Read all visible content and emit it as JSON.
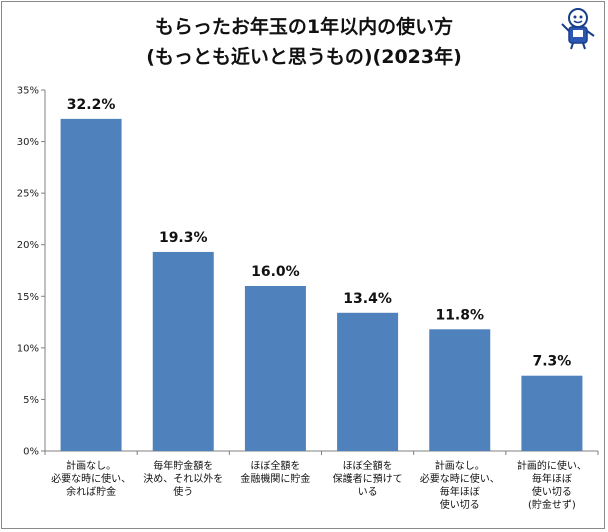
{
  "chart_data": {
    "type": "bar",
    "title_lines": [
      "もらったお年玉の1年以内の使い方",
      "(もっとも近いと思うもの)(2023年)"
    ],
    "categories": [
      [
        "計画なし。",
        "必要な時に使い、",
        "余れば貯金"
      ],
      [
        "毎年貯金額を",
        "決め、それ以外を",
        "使う"
      ],
      [
        "ほぼ全額を",
        "金融機関に貯金"
      ],
      [
        "ほぼ全額を",
        "保護者に預けて",
        "いる"
      ],
      [
        "計画なし。",
        "必要な時に使い、",
        "毎年ほぼ",
        "使い切る"
      ],
      [
        "計画的に使い、",
        "毎年ほぼ",
        "使い切る",
        "(貯金せず)"
      ]
    ],
    "values": [
      32.2,
      19.3,
      16.0,
      13.4,
      11.8,
      7.3
    ],
    "value_labels": [
      "32.2%",
      "19.3%",
      "16.0%",
      "13.4%",
      "11.8%",
      "7.3%"
    ],
    "yticks": [
      "0%",
      "5%",
      "10%",
      "15%",
      "20%",
      "25%",
      "30%",
      "35%"
    ],
    "ylim": [
      0,
      35
    ],
    "grid": false,
    "bar_color": "#4f81bd"
  }
}
